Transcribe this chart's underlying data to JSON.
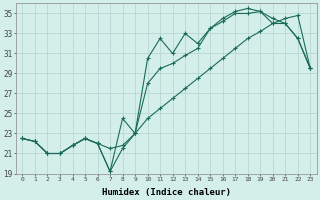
{
  "xlabel": "Humidex (Indice chaleur)",
  "background_color": "#d4eeea",
  "grid_color": "#b8d8d4",
  "line_color": "#1a6b5a",
  "xlim": [
    -0.5,
    23.5
  ],
  "ylim": [
    19,
    36
  ],
  "yticks": [
    19,
    21,
    23,
    25,
    27,
    29,
    31,
    33,
    35
  ],
  "xticks": [
    0,
    1,
    2,
    3,
    4,
    5,
    6,
    7,
    8,
    9,
    10,
    11,
    12,
    13,
    14,
    15,
    16,
    17,
    18,
    19,
    20,
    21,
    22,
    23
  ],
  "series1_x": [
    0,
    1,
    2,
    3,
    4,
    5,
    6,
    7,
    8,
    9,
    10,
    11,
    12,
    13,
    14,
    15,
    16,
    17,
    18,
    19,
    20,
    21,
    22,
    23
  ],
  "series1_y": [
    22.5,
    22.2,
    21.0,
    21.0,
    21.8,
    22.5,
    22.0,
    19.2,
    24.5,
    23.0,
    30.5,
    32.5,
    31.0,
    33.0,
    32.0,
    33.5,
    34.2,
    35.0,
    35.0,
    35.2,
    34.0,
    34.0,
    32.5,
    29.5
  ],
  "series2_x": [
    0,
    1,
    2,
    3,
    4,
    5,
    6,
    7,
    8,
    9,
    10,
    11,
    12,
    13,
    14,
    15,
    16,
    17,
    18,
    19,
    20,
    21,
    22,
    23
  ],
  "series2_y": [
    22.5,
    22.2,
    21.0,
    21.0,
    21.8,
    22.5,
    22.0,
    21.5,
    21.8,
    23.0,
    28.0,
    29.5,
    30.0,
    30.8,
    31.5,
    33.5,
    34.5,
    35.2,
    35.5,
    35.2,
    34.5,
    34.0,
    32.5,
    29.5
  ],
  "series3_x": [
    0,
    1,
    2,
    3,
    4,
    5,
    6,
    7,
    8,
    9,
    10,
    11,
    12,
    13,
    14,
    15,
    16,
    17,
    18,
    19,
    20,
    21,
    22,
    23
  ],
  "series3_y": [
    22.5,
    22.2,
    21.0,
    21.0,
    21.8,
    22.5,
    22.0,
    19.2,
    21.5,
    23.0,
    24.5,
    25.5,
    26.5,
    27.5,
    28.5,
    29.5,
    30.5,
    31.5,
    32.5,
    33.2,
    34.0,
    34.5,
    34.8,
    29.5
  ]
}
